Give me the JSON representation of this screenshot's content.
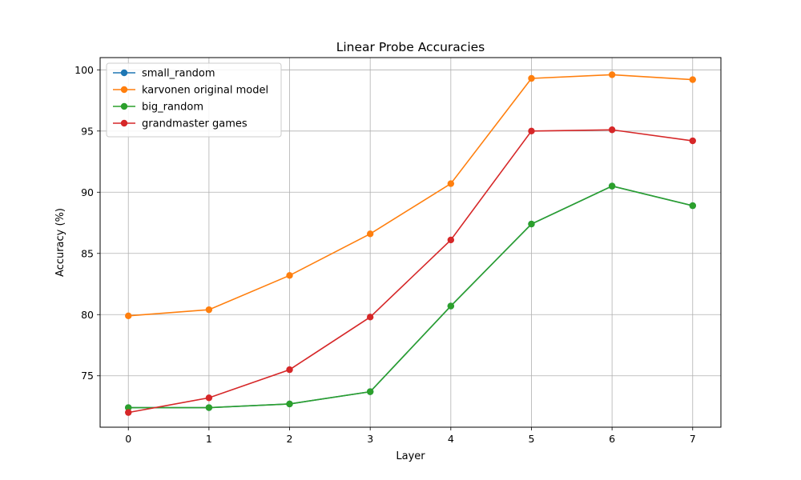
{
  "chart_data": {
    "type": "line",
    "title": "Linear Probe Accuracies",
    "xlabel": "Layer",
    "ylabel": "Accuracy (%)",
    "x": [
      0,
      1,
      2,
      3,
      4,
      5,
      6,
      7
    ],
    "x_ticks": [
      "0",
      "1",
      "2",
      "3",
      "4",
      "5",
      "6",
      "7"
    ],
    "y_ticks": [
      "75",
      "80",
      "85",
      "90",
      "95",
      "100"
    ],
    "y_tick_values": [
      75,
      80,
      85,
      90,
      95,
      100
    ],
    "xlim": [
      -0.35,
      7.35
    ],
    "ylim": [
      70.8,
      101.0
    ],
    "grid": true,
    "legend_position": "top-left",
    "series": [
      {
        "name": "small_random",
        "color": "#1f77b4",
        "values": [
          72.4,
          72.4,
          72.7,
          73.7,
          80.7,
          87.4,
          90.5,
          88.9
        ]
      },
      {
        "name": "karvonen original model",
        "color": "#ff7f0e",
        "values": [
          79.9,
          80.4,
          83.2,
          86.6,
          90.7,
          99.3,
          99.6,
          99.2
        ]
      },
      {
        "name": "big_random",
        "color": "#2ca02c",
        "values": [
          72.4,
          72.4,
          72.7,
          73.7,
          80.7,
          87.4,
          90.5,
          88.9
        ]
      },
      {
        "name": "grandmaster games",
        "color": "#d62728",
        "values": [
          72.0,
          73.2,
          75.5,
          79.8,
          86.1,
          95.0,
          95.1,
          94.2
        ]
      }
    ]
  }
}
